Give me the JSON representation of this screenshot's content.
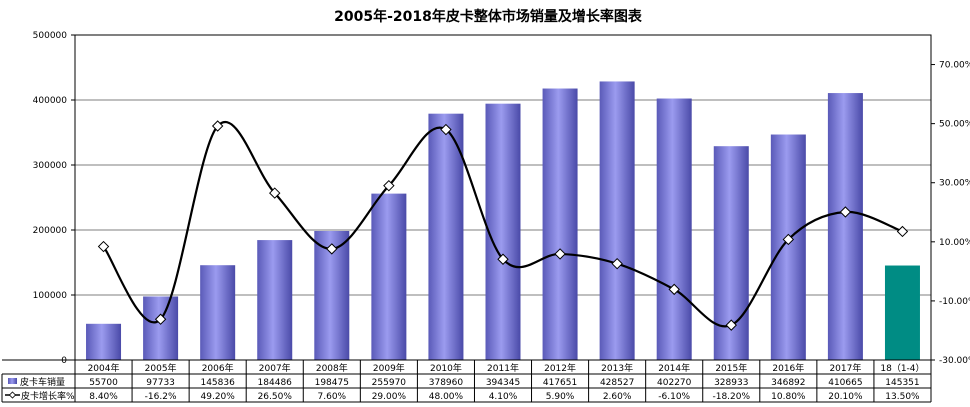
{
  "chart_data": {
    "type": "bar",
    "title": "2005年-2018年皮卡整体市场销量及增长率图表",
    "categories": [
      "2004年",
      "2005年",
      "2006年",
      "2007年",
      "2008年",
      "2009年",
      "2010年",
      "2011年",
      "2012年",
      "2013年",
      "2014年",
      "2015年",
      "2016年",
      "2017年",
      "18（1-4）"
    ],
    "series": [
      {
        "name": "皮卡车销量",
        "kind": "bar",
        "axis": "left",
        "values": [
          55700,
          97733,
          145836,
          184486,
          198475,
          255970,
          378960,
          394345,
          417651,
          428527,
          402270,
          328933,
          346892,
          410665,
          145351
        ],
        "labels": [
          "55700",
          "97733",
          "145836",
          "184486",
          "198475",
          "255970",
          "378960",
          "394345",
          "417651",
          "428527",
          "402270",
          "328933",
          "346892",
          "410665",
          "145351"
        ],
        "color": "#9b9bef",
        "highlight_last_color": "#008c84"
      },
      {
        "name": "皮卡增长率%",
        "kind": "line",
        "axis": "right",
        "values": [
          8.4,
          -16.2,
          49.2,
          26.5,
          7.6,
          29.0,
          48.0,
          4.1,
          5.9,
          2.6,
          -6.1,
          -18.2,
          10.8,
          20.1,
          13.5
        ],
        "labels": [
          "8.40%",
          "-16.2%",
          "49.20%",
          "26.50%",
          "7.60%",
          "29.00%",
          "48.00%",
          "4.10%",
          "5.90%",
          "2.60%",
          "-6.10%",
          "-18.20%",
          "10.80%",
          "20.10%",
          "13.50%"
        ],
        "color": "#000000"
      }
    ],
    "y_left": {
      "min": 0,
      "max": 500000,
      "ticks": [
        0,
        100000,
        200000,
        300000,
        400000,
        500000
      ],
      "tick_labels": [
        "0",
        "100000",
        "200000",
        "300000",
        "400000",
        "500000"
      ]
    },
    "y_right": {
      "min": -30,
      "max": 80,
      "ticks": [
        -30,
        -10,
        10,
        30,
        50,
        70
      ],
      "tick_labels": [
        "-30.00%",
        "-10.00%",
        "10.00%",
        "30.00%",
        "50.00%",
        "70.00%"
      ]
    },
    "grid": true,
    "legend": "table-left"
  }
}
